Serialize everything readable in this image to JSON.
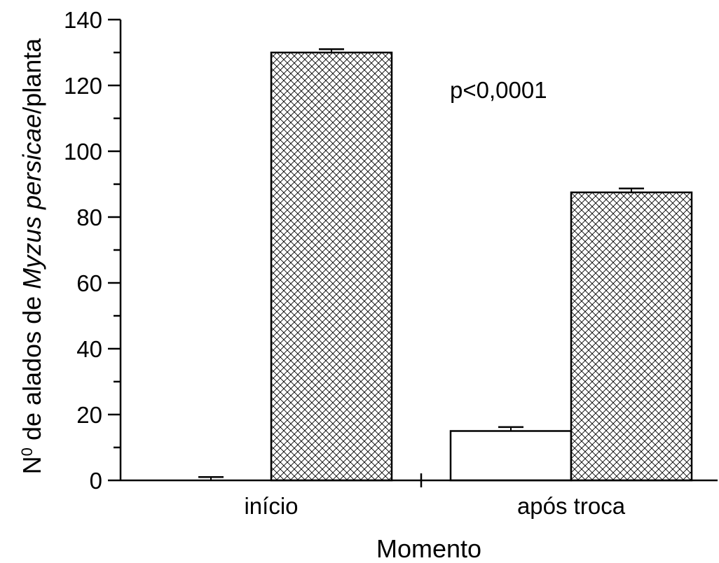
{
  "chart_data": {
    "type": "bar",
    "title": "",
    "xlabel": "Momento",
    "ylabel": {
      "prefix": "N",
      "superscript": "0",
      "middle": " de alados de ",
      "italic": "Myzus persicae",
      "suffix": "/planta"
    },
    "categories": [
      "início",
      "após troca"
    ],
    "series": [
      {
        "fill": "#ffffff",
        "pattern": "none",
        "values": [
          0,
          15
        ],
        "errors": [
          1.0,
          1.2
        ]
      },
      {
        "fill": "#ffffff",
        "pattern": "crosshatch",
        "values": [
          130,
          87.5
        ],
        "errors": [
          1.0,
          1.2
        ]
      }
    ],
    "ylim": [
      0,
      140
    ],
    "yticks": [
      0,
      20,
      40,
      60,
      80,
      100,
      120,
      140
    ],
    "yminor_step": 10,
    "grid": false,
    "legend": "none",
    "annotation": "p<0,0001",
    "colors": {
      "stroke": "#000000",
      "background": "#ffffff"
    }
  }
}
